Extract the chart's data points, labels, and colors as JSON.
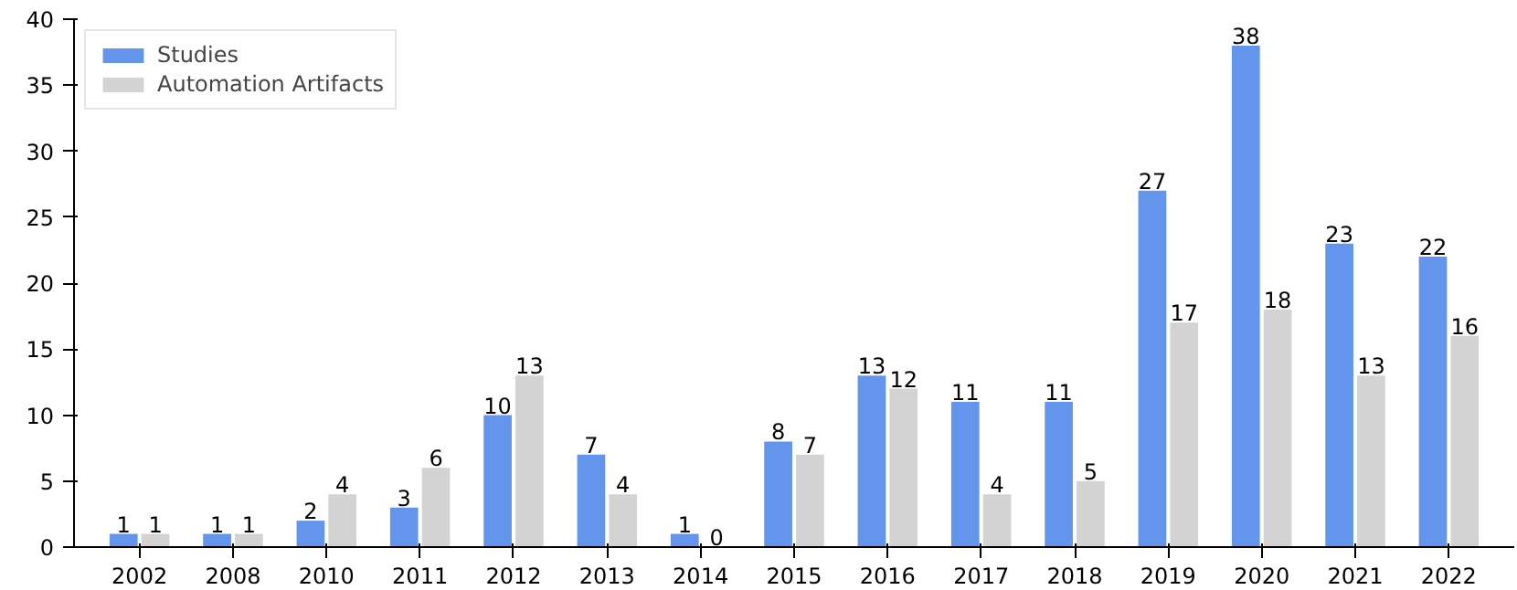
{
  "chart_data": {
    "type": "bar",
    "categories": [
      "2002",
      "2008",
      "2010",
      "2011",
      "2012",
      "2013",
      "2014",
      "2015",
      "2016",
      "2017",
      "2018",
      "2019",
      "2020",
      "2021",
      "2022"
    ],
    "series": [
      {
        "name": "Studies",
        "color": "#6495ed",
        "values": [
          1,
          1,
          2,
          3,
          10,
          7,
          1,
          8,
          13,
          11,
          11,
          27,
          38,
          23,
          22
        ]
      },
      {
        "name": "Automation Artifacts",
        "color": "#d3d3d3",
        "values": [
          1,
          1,
          4,
          6,
          13,
          4,
          0,
          7,
          12,
          4,
          5,
          17,
          18,
          13,
          16
        ]
      }
    ],
    "ylim": [
      0,
      40
    ],
    "yticks": [
      0,
      5,
      10,
      15,
      20,
      25,
      30,
      35,
      40
    ],
    "grid": false,
    "legend": "top left",
    "data_labels": true
  }
}
